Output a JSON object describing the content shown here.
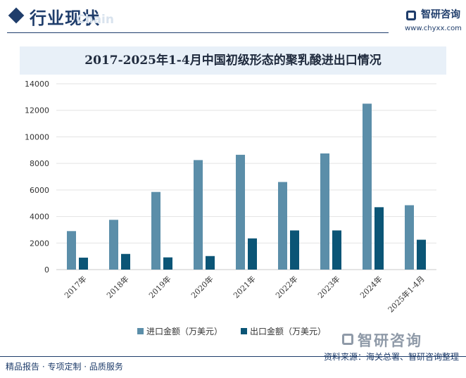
{
  "header": {
    "section_title": "行业现状",
    "ghost_text": "Chain",
    "brand_name": "智研咨询",
    "brand_url": "www.chyxx.com"
  },
  "watermark": {
    "brand": "智研咨询"
  },
  "footer": {
    "left_text": "精品报告 · 专项定制 · 品质服务",
    "source_text": "资料来源：海关总署、智研咨询整理"
  },
  "colors": {
    "import": "#5b8ea9",
    "export": "#0b5576",
    "navy": "#1f3d6b"
  },
  "chart_data": {
    "type": "bar",
    "title": "2017-2025年1-4月中国初级形态的聚乳酸进出口情况",
    "categories": [
      "2017年",
      "2018年",
      "2019年",
      "2020年",
      "2021年",
      "2022年",
      "2023年",
      "2024年",
      "2025年1-4月"
    ],
    "series": [
      {
        "name": "进口金额（万美元）",
        "values": [
          2900,
          3750,
          5850,
          8250,
          8650,
          6600,
          8750,
          12500,
          4850
        ]
      },
      {
        "name": "出口金额（万美元）",
        "values": [
          900,
          1180,
          920,
          1020,
          2350,
          2950,
          2950,
          4700,
          2250
        ]
      }
    ],
    "yticks": [
      "0",
      "2000",
      "4000",
      "6000",
      "8000",
      "10000",
      "12000",
      "14000"
    ],
    "ylim": [
      0,
      14000
    ],
    "xlabel": "",
    "ylabel": "",
    "grid": true,
    "legend": "bottom-center"
  }
}
